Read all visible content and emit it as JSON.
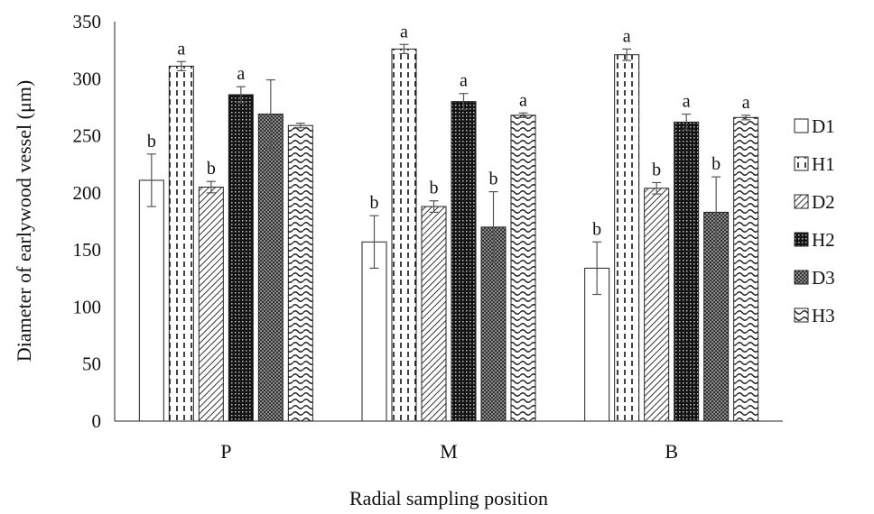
{
  "chart_data": {
    "type": "bar",
    "title": "",
    "xlabel": "Radial sampling position",
    "ylabel": "Diameter of earlywood vessel (μm)",
    "ylim": [
      0,
      350
    ],
    "yticks": [
      0,
      50,
      100,
      150,
      200,
      250,
      300,
      350
    ],
    "grid": false,
    "legend_position": "right",
    "categories": [
      "P",
      "M",
      "B"
    ],
    "series": [
      {
        "name": "D1",
        "values": [
          211,
          157,
          134
        ],
        "errors": [
          23,
          23,
          23
        ],
        "labels": [
          "b",
          "b",
          "b"
        ],
        "pattern": "plain"
      },
      {
        "name": "H1",
        "values": [
          311,
          326,
          321
        ],
        "errors": [
          4,
          4,
          5
        ],
        "labels": [
          "a",
          "a",
          "a"
        ],
        "pattern": "dashed-vertical"
      },
      {
        "name": "D2",
        "values": [
          205,
          188,
          204
        ],
        "errors": [
          5,
          5,
          5
        ],
        "labels": [
          "b",
          "b",
          "b"
        ],
        "pattern": "diagonal"
      },
      {
        "name": "H2",
        "values": [
          286,
          280,
          262
        ],
        "errors": [
          7,
          7,
          7
        ],
        "labels": [
          "a",
          "a",
          "a"
        ],
        "pattern": "dark-check"
      },
      {
        "name": "D3",
        "values": [
          269,
          170,
          183
        ],
        "errors": [
          30,
          31,
          31
        ],
        "labels": [
          "",
          "b",
          "b"
        ],
        "pattern": "dark-dots"
      },
      {
        "name": "H3",
        "values": [
          259,
          268,
          266
        ],
        "errors": [
          2,
          2,
          2
        ],
        "labels": [
          "",
          "a",
          "a"
        ],
        "pattern": "wave"
      }
    ]
  }
}
